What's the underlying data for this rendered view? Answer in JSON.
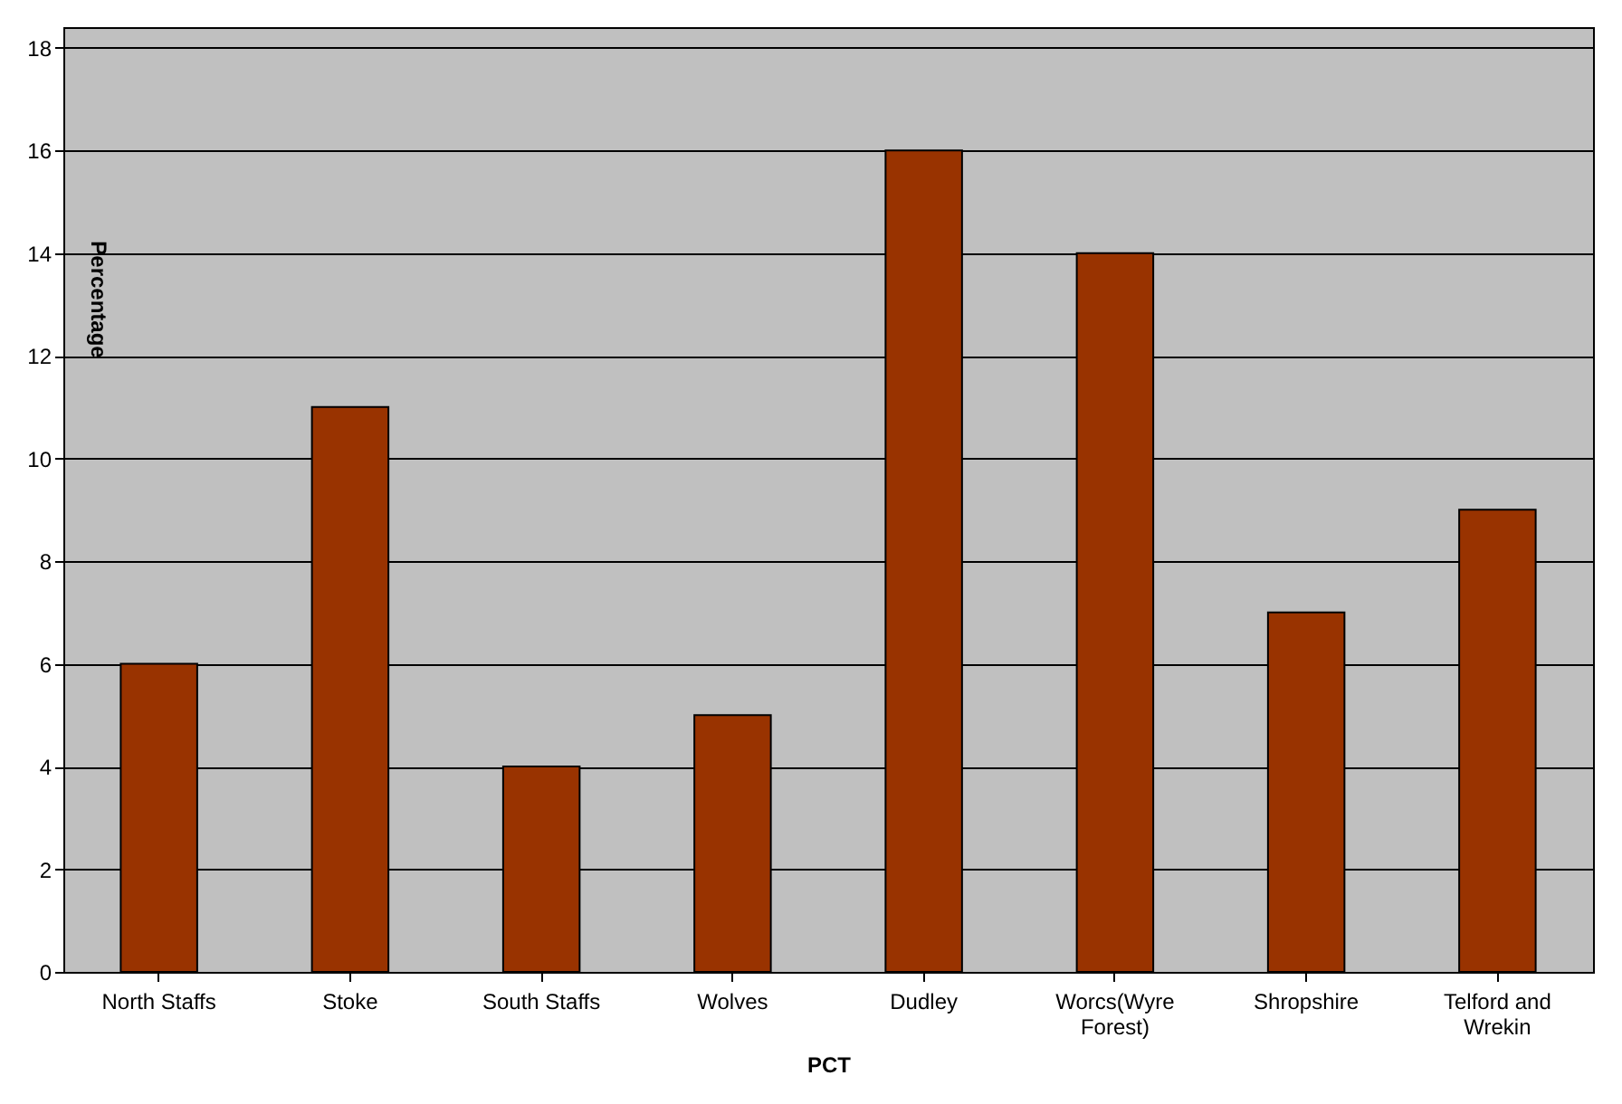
{
  "chart_data": {
    "type": "bar",
    "xlabel": "PCT",
    "ylabel": "Percentage",
    "categories": [
      "North Staffs",
      "Stoke",
      "South Staffs",
      "Wolves",
      "Dudley",
      "Worcs(Wyre Forest)",
      "Shropshire",
      "Telford and Wrekin"
    ],
    "values": [
      6,
      11,
      4,
      5,
      16,
      14,
      7,
      9
    ],
    "color": "#993300",
    "ylim": [
      0,
      18.4
    ],
    "yticks": [
      0,
      2,
      4,
      6,
      8,
      10,
      12,
      14,
      16,
      18
    ],
    "grid": "y"
  }
}
